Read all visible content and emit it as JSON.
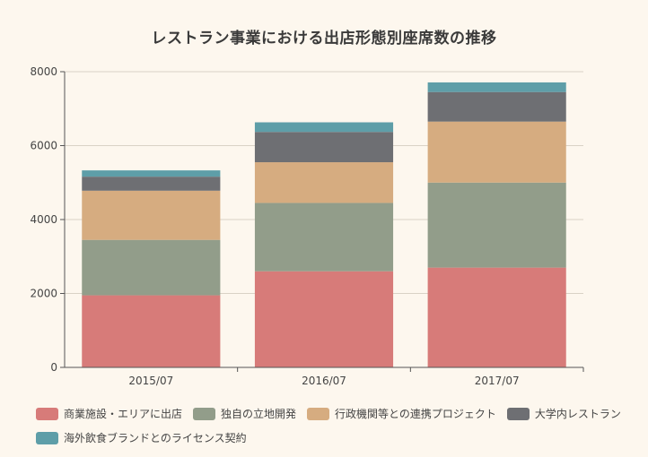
{
  "chart_data": {
    "type": "bar",
    "stacked": true,
    "title": "レストラン事業における出店形態別座席数の推移",
    "xlabel": "",
    "ylabel": "",
    "categories": [
      "2015/07",
      "2016/07",
      "2017/07"
    ],
    "ylim": [
      0,
      8000
    ],
    "yticks": [
      0,
      2000,
      4000,
      6000,
      8000
    ],
    "grid": true,
    "legend_position": "bottom",
    "series": [
      {
        "name": "商業施設・エリアに出店",
        "color": "#d77b79",
        "values": [
          1950,
          2600,
          2700
        ]
      },
      {
        "name": "独自の立地開発",
        "color": "#929d8a",
        "values": [
          1500,
          1850,
          2300
        ]
      },
      {
        "name": "行政機関等との連携プロジェクト",
        "color": "#d6ac80",
        "values": [
          1330,
          1100,
          1650
        ]
      },
      {
        "name": "大学内レストラン",
        "color": "#6e6f73",
        "values": [
          380,
          820,
          800
        ]
      },
      {
        "name": "海外飲食ブランドとのライセンス契約",
        "color": "#5e9ea8",
        "values": [
          170,
          260,
          260
        ]
      }
    ]
  }
}
